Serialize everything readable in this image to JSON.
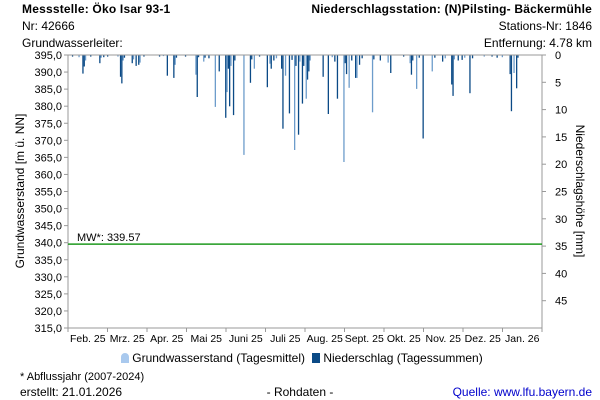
{
  "header": {
    "station_title": "Messstelle: Öko Isar 93-1",
    "station_nr": "Nr: 42666",
    "aquifer": "Grundwasserleiter:",
    "precip_station": "Niederschlagsstation: (N)Pilsting- Bäckermühle",
    "precip_station_nr": "Stations-Nr: 1846",
    "distance": "Entfernung: 4.78 km"
  },
  "legend": {
    "groundwater": "Grundwasserstand (Tagesmittel)",
    "precipitation": "Niederschlag (Tagessummen)"
  },
  "footer": {
    "note": "* Abflussjahr (2007-2024)",
    "created": "erstellt:  21.01.2026",
    "raw": "- Rohdaten -",
    "source": "Quelle: www.lfu.bayern.de"
  },
  "colors": {
    "precip_dark": "#0b4a86",
    "precip_light": "#6d9ccb",
    "mean_line": "#1f9a1f",
    "groundwater_legend": "#a9c9ee",
    "source_link": "#0000cc"
  },
  "chart_data": {
    "type": "bar",
    "ylabel": "Grundwasserstand [m ü. NN]",
    "y2label": "Niederschlagshöhe [mm]",
    "ylim": [
      315,
      395
    ],
    "y_ticks": [
      "315,0",
      "320,0",
      "325,0",
      "330,0",
      "335,0",
      "340,0",
      "345,0",
      "350,0",
      "355,0",
      "360,0",
      "365,0",
      "370,0",
      "375,0",
      "380,0",
      "385,0",
      "390,0",
      "395,0"
    ],
    "y2lim": [
      0,
      50
    ],
    "y2_ticks": [
      "0",
      "5",
      "10",
      "15",
      "20",
      "25",
      "30",
      "35",
      "40",
      "45"
    ],
    "x_ticks": [
      "Feb. 25",
      "Mrz. 25",
      "Apr. 25",
      "Mai 25",
      "Juni 25",
      "Juli 25",
      "Aug. 25",
      "Sept. 25",
      "Okt. 25",
      "Nov. 25",
      "Dez. 25",
      "Jan. 26"
    ],
    "x_days": 365,
    "mean": {
      "label": "MW*: 339.57",
      "value": 339.57
    },
    "groundwater": [],
    "precipitation_day_mm": [
      [
        3,
        0.3
      ],
      [
        8,
        0.4
      ],
      [
        11,
        3.4
      ],
      [
        12,
        2.1
      ],
      [
        13,
        1.0
      ],
      [
        17,
        0.3
      ],
      [
        24,
        1.5
      ],
      [
        25,
        0.5
      ],
      [
        27,
        0.4
      ],
      [
        30,
        0.3
      ],
      [
        38,
        0.3
      ],
      [
        40,
        4.0
      ],
      [
        41,
        5.2
      ],
      [
        42,
        1.0
      ],
      [
        43,
        0.5
      ],
      [
        49,
        1.5
      ],
      [
        50,
        0.8
      ],
      [
        52,
        2.0
      ],
      [
        54,
        1.8
      ],
      [
        55,
        1.4
      ],
      [
        58,
        0.3
      ],
      [
        70,
        0.3
      ],
      [
        73,
        0.2
      ],
      [
        76,
        3.8
      ],
      [
        81,
        4.2
      ],
      [
        82,
        1.8
      ],
      [
        83,
        0.5
      ],
      [
        90,
        0.3
      ],
      [
        98,
        3.6
      ],
      [
        99,
        7.7
      ],
      [
        100,
        0.4
      ],
      [
        104,
        1.2
      ],
      [
        105,
        0.5
      ],
      [
        108,
        0.6
      ],
      [
        113,
        9.5
      ],
      [
        116,
        3.0
      ],
      [
        121,
        11.5
      ],
      [
        122,
        6.8
      ],
      [
        123,
        2.5
      ],
      [
        124,
        9.4
      ],
      [
        125,
        2.0
      ],
      [
        127,
        11.0
      ],
      [
        128,
        1.0
      ],
      [
        135,
        18.3
      ],
      [
        140,
        5.1
      ],
      [
        141,
        0.8
      ],
      [
        143,
        2.5
      ],
      [
        147,
        0.3
      ],
      [
        153,
        5.9
      ],
      [
        155,
        1.6
      ],
      [
        156,
        2.5
      ],
      [
        158,
        1.0
      ],
      [
        160,
        0.6
      ],
      [
        164,
        2.5
      ],
      [
        165,
        13.5
      ],
      [
        167,
        3.8
      ],
      [
        170,
        10.7
      ],
      [
        172,
        0.9
      ],
      [
        174,
        17.4
      ],
      [
        175,
        2.0
      ],
      [
        177,
        14.6
      ],
      [
        178,
        1.2
      ],
      [
        180,
        8.9
      ],
      [
        181,
        2.0
      ],
      [
        183,
        8.0
      ],
      [
        184,
        4.5
      ],
      [
        185,
        3.0
      ],
      [
        186,
        1.0
      ],
      [
        196,
        4.0
      ],
      [
        200,
        10.8
      ],
      [
        203,
        0.4
      ],
      [
        205,
        1.2
      ],
      [
        207,
        8.0
      ],
      [
        212,
        19.6
      ],
      [
        213,
        1.5
      ],
      [
        214,
        3.5
      ],
      [
        216,
        6.0
      ],
      [
        218,
        1.0
      ],
      [
        221,
        4.2
      ],
      [
        222,
        4.2
      ],
      [
        224,
        1.8
      ],
      [
        226,
        0.6
      ],
      [
        234,
        10.5
      ],
      [
        235,
        0.8
      ],
      [
        240,
        1.0
      ],
      [
        246,
        1.4
      ],
      [
        248,
        3.3
      ],
      [
        258,
        0.3
      ],
      [
        263,
        1.5
      ],
      [
        264,
        3.6
      ],
      [
        265,
        1.0
      ],
      [
        268,
        6.2
      ],
      [
        270,
        0.5
      ],
      [
        273,
        15.3
      ],
      [
        280,
        3.0
      ],
      [
        282,
        0.5
      ],
      [
        288,
        1.2
      ],
      [
        290,
        0.6
      ],
      [
        295,
        5.4
      ],
      [
        296,
        7.5
      ],
      [
        297,
        0.8
      ],
      [
        300,
        1.0
      ],
      [
        303,
        0.9
      ],
      [
        305,
        0.5
      ],
      [
        309,
        7.0
      ],
      [
        311,
        0.6
      ],
      [
        320,
        0.3
      ],
      [
        326,
        0.3
      ],
      [
        330,
        0.5
      ],
      [
        334,
        0.4
      ],
      [
        340,
        3.5
      ],
      [
        341,
        10.3
      ],
      [
        343,
        3.3
      ],
      [
        345,
        6.1
      ],
      [
        346,
        0.5
      ]
    ]
  }
}
